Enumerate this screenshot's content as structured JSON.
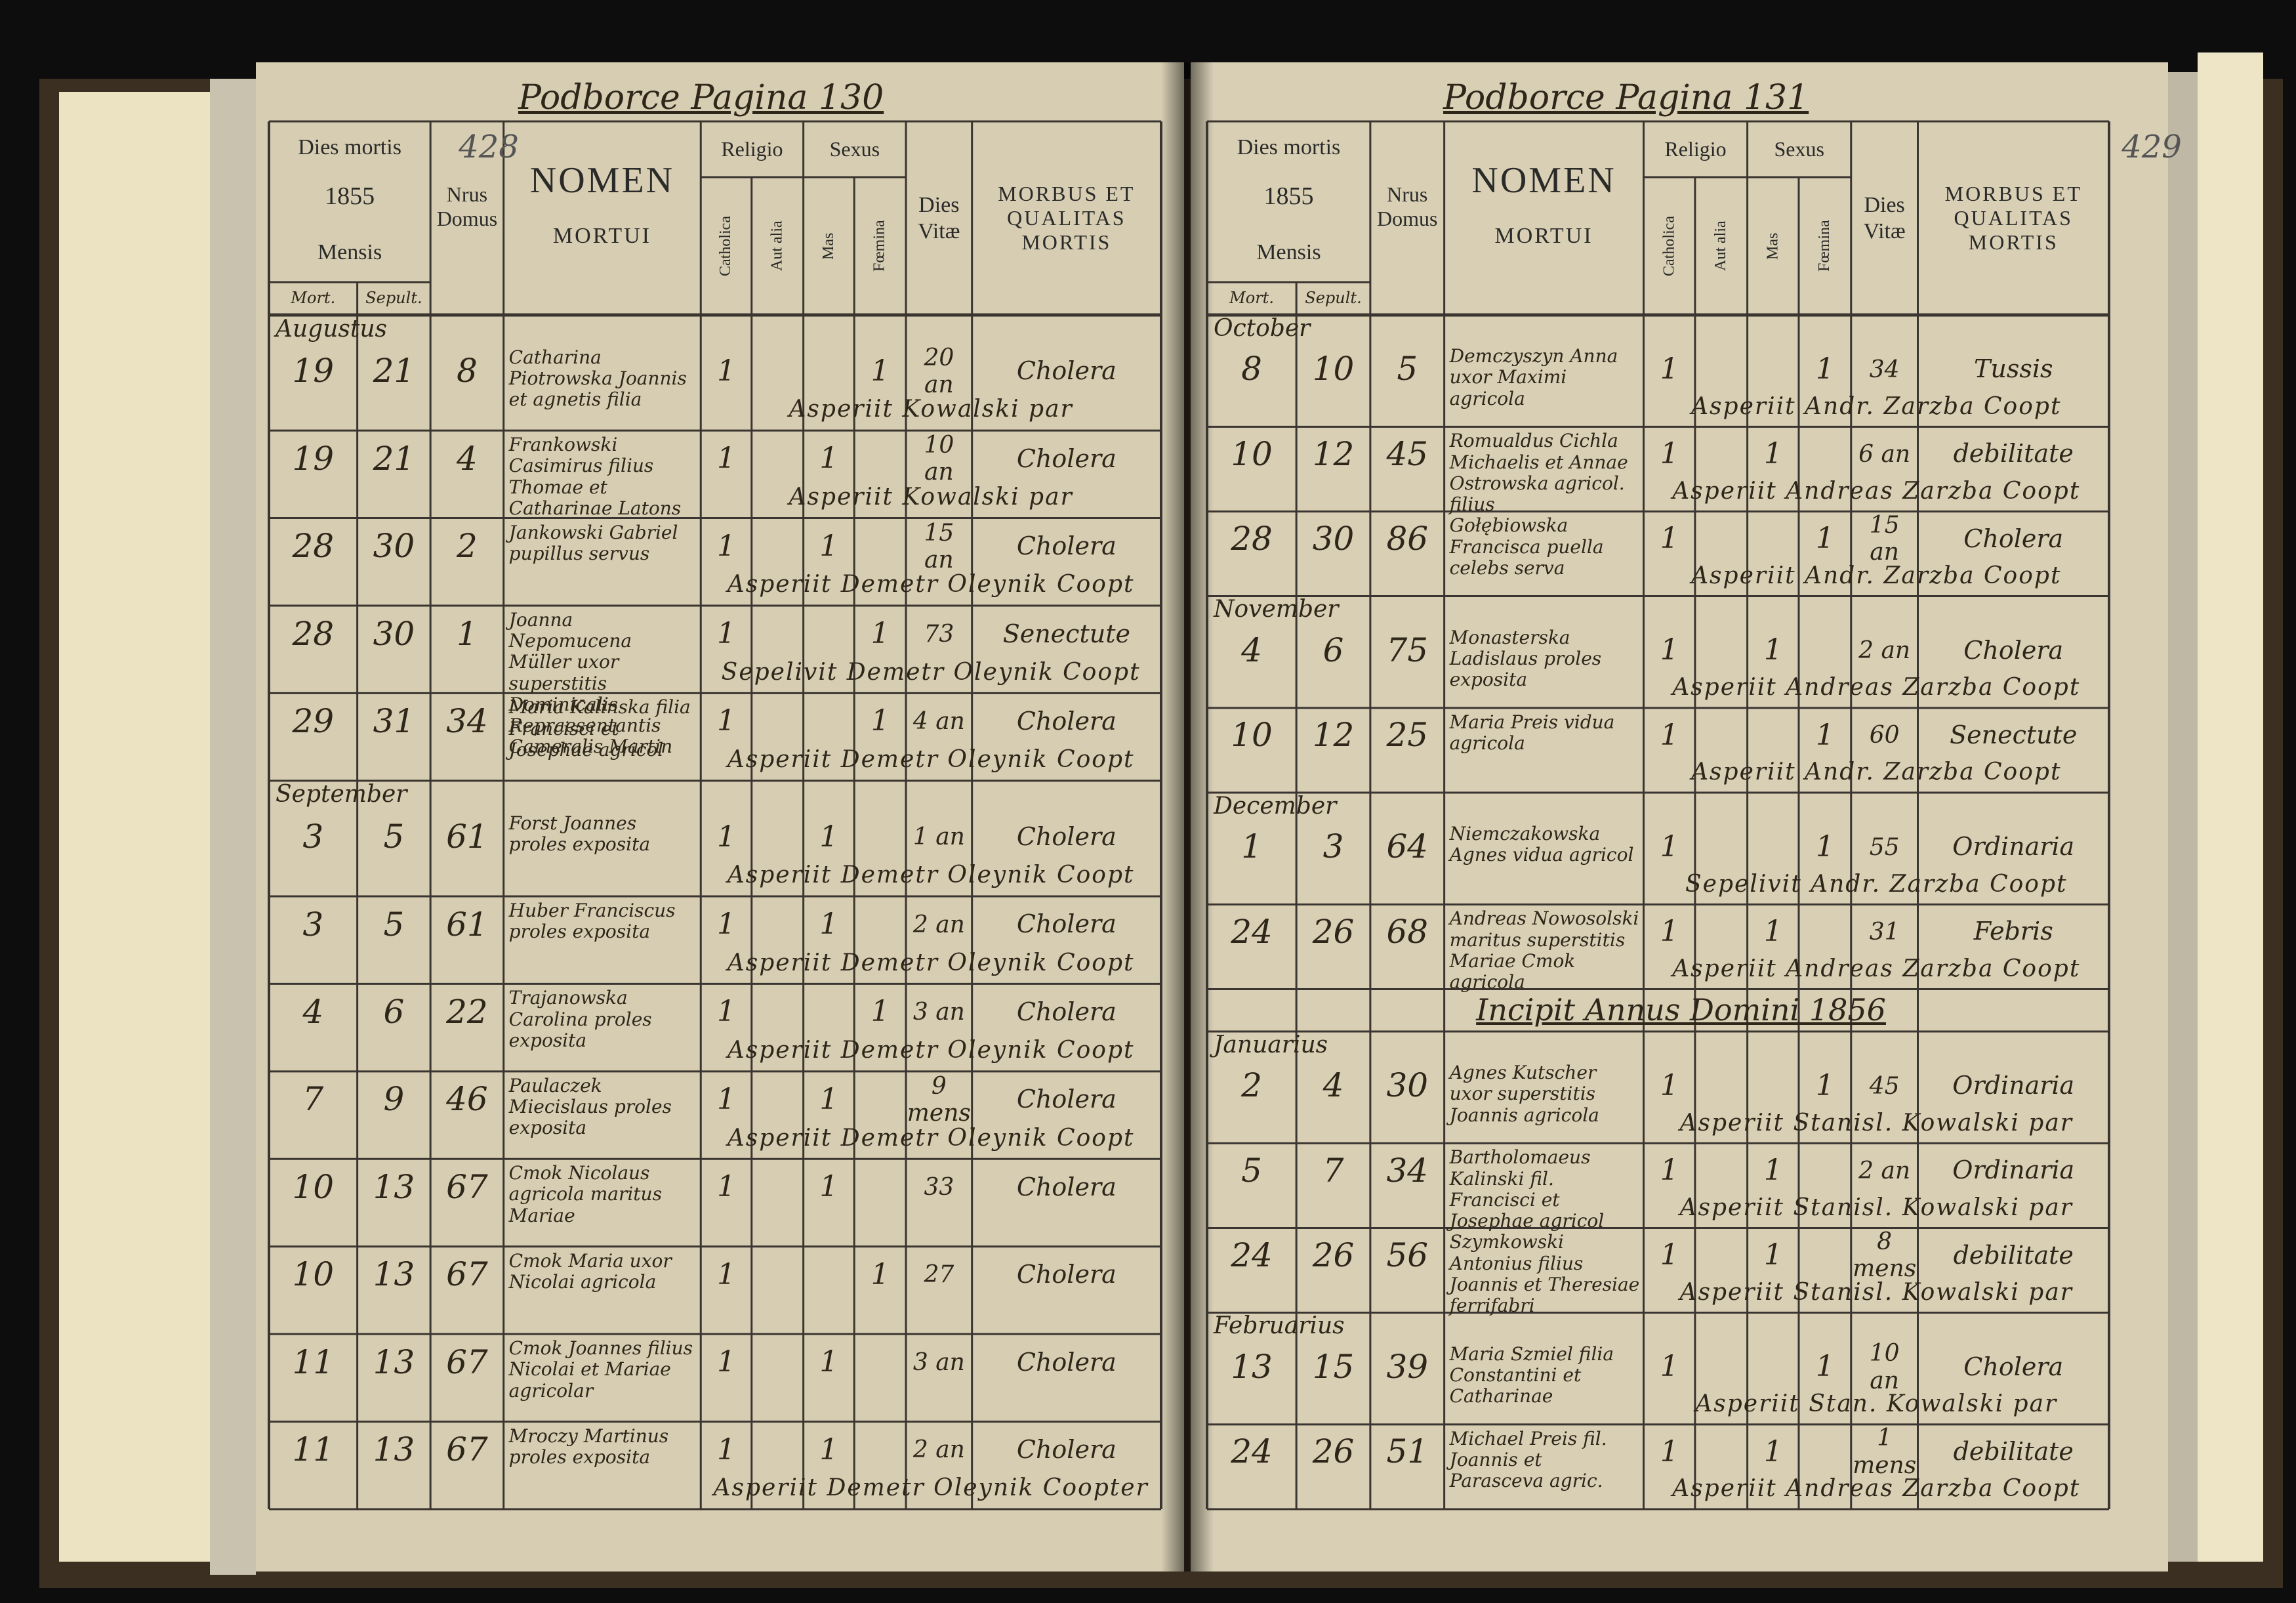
{
  "header": {
    "dies_mortis": "Dies mortis",
    "mensis": "Mensis",
    "mort": "Mort.",
    "sepult": "Sepult.",
    "nrus_domus": "Nrus Domus",
    "nomen": "NOMEN",
    "mortui": "MORTUI",
    "religio": "Religio",
    "catholica": "Catholica",
    "aut_alia": "Aut alia",
    "sexus": "Sexus",
    "mas": "Mas",
    "foemina": "Fœmina",
    "dies_vitae": "Dies Vitæ",
    "morbus": "MORBUS ET QUALITAS MORTIS"
  },
  "left_page": {
    "heading": "Podborce Pagina 130",
    "folio": "428",
    "year": "1855",
    "rows": [
      {
        "month": "Augustus"
      },
      {
        "mort": "19",
        "sepult": "21",
        "domus": "8",
        "nomen": "Catharina Piotrowska Joannis et agnetis filia",
        "cath": "1",
        "fem": "1",
        "vitae": "20 an",
        "morbus": "Cholera",
        "note": "Asperiit Kowalski par"
      },
      {
        "mort": "19",
        "sepult": "21",
        "domus": "4",
        "nomen": "Frankowski Casimirus filius Thomae et Catharinae Latons",
        "cath": "1",
        "mas": "1",
        "vitae": "10 an",
        "morbus": "Cholera",
        "note": "Asperiit Kowalski par"
      },
      {
        "mort": "28",
        "sepult": "30",
        "domus": "2",
        "nomen": "Jankowski Gabriel pupillus servus",
        "cath": "1",
        "mas": "1",
        "vitae": "15 an",
        "morbus": "Cholera",
        "note": "Asperiit Demetr Oleynik Coopt"
      },
      {
        "mort": "28",
        "sepult": "30",
        "domus": "1",
        "nomen": "Joanna Nepomucena Müller uxor superstitis Dominicalis Repraesentantis Cameralis Martin",
        "cath": "1",
        "fem": "1",
        "vitae": "73",
        "morbus": "Senectute",
        "note": "Sepelivit Demetr Oleynik Coopt"
      },
      {
        "mort": "29",
        "sepult": "31",
        "domus": "34",
        "nomen": "Maria Kalinska filia Francisci et Josephae agricol",
        "cath": "1",
        "fem": "1",
        "vitae": "4 an",
        "morbus": "Cholera",
        "note": "Asperiit Demetr Oleynik Coopt"
      },
      {
        "month": "September"
      },
      {
        "mort": "3",
        "sepult": "5",
        "domus": "61",
        "nomen": "Forst Joannes proles exposita",
        "cath": "1",
        "mas": "1",
        "vitae": "1 an",
        "morbus": "Cholera",
        "note": "Asperiit Demetr Oleynik Coopt"
      },
      {
        "mort": "3",
        "sepult": "5",
        "domus": "61",
        "nomen": "Huber Franciscus proles exposita",
        "cath": "1",
        "mas": "1",
        "vitae": "2 an",
        "morbus": "Cholera",
        "note": "Asperiit Demetr Oleynik Coopt"
      },
      {
        "mort": "4",
        "sepult": "6",
        "domus": "22",
        "nomen": "Trajanowska Carolina proles exposita",
        "cath": "1",
        "fem": "1",
        "vitae": "3 an",
        "morbus": "Cholera",
        "note": "Asperiit Demetr Oleynik Coopt"
      },
      {
        "mort": "7",
        "sepult": "9",
        "domus": "46",
        "nomen": "Paulaczek Miecislaus proles exposita",
        "cath": "1",
        "mas": "1",
        "vitae": "9 mens",
        "morbus": "Cholera",
        "note": "Asperiit Demetr Oleynik Coopt"
      },
      {
        "mort": "10",
        "sepult": "13",
        "domus": "67",
        "nomen": "Cmok Nicolaus agricola maritus Mariae",
        "cath": "1",
        "mas": "1",
        "vitae": "33",
        "morbus": "Cholera"
      },
      {
        "mort": "10",
        "sepult": "13",
        "domus": "67",
        "nomen": "Cmok Maria uxor Nicolai agricola",
        "cath": "1",
        "fem": "1",
        "vitae": "27",
        "morbus": "Cholera"
      },
      {
        "mort": "11",
        "sepult": "13",
        "domus": "67",
        "nomen": "Cmok Joannes filius Nicolai et Mariae agricolar",
        "cath": "1",
        "mas": "1",
        "vitae": "3 an",
        "morbus": "Cholera"
      },
      {
        "mort": "11",
        "sepult": "13",
        "domus": "67",
        "nomen": "Mroczy Martinus proles exposita",
        "cath": "1",
        "mas": "1",
        "vitae": "2 an",
        "morbus": "Cholera",
        "note": "Asperiit Demetr Oleynik Coopter"
      }
    ]
  },
  "right_page": {
    "heading": "Podborce Pagina 131",
    "folio": "429",
    "year": "1855",
    "rows": [
      {
        "month": "October"
      },
      {
        "mort": "8",
        "sepult": "10",
        "domus": "5",
        "nomen": "Demczyszyn Anna uxor Maximi agricola",
        "cath": "1",
        "fem": "1",
        "vitae": "34",
        "morbus": "Tussis",
        "note": "Asperiit Andr. Zarzba Coopt"
      },
      {
        "mort": "10",
        "sepult": "12",
        "domus": "45",
        "nomen": "Romualdus Cichla Michaelis et Annae Ostrowska agricol. filius",
        "cath": "1",
        "mas": "1",
        "vitae": "6 an",
        "morbus": "debilitate",
        "note": "Asperiit Andreas Zarzba Coopt"
      },
      {
        "mort": "28",
        "sepult": "30",
        "domus": "86",
        "nomen": "Gołębiowska Francisca puella celebs serva",
        "cath": "1",
        "fem": "1",
        "vitae": "15 an",
        "morbus": "Cholera",
        "note": "Asperiit Andr. Zarzba Coopt"
      },
      {
        "month": "November"
      },
      {
        "mort": "4",
        "sepult": "6",
        "domus": "75",
        "nomen": "Monasterska Ladislaus proles exposita",
        "cath": "1",
        "mas": "1",
        "vitae": "2 an",
        "morbus": "Cholera",
        "note": "Asperiit Andreas Zarzba Coopt"
      },
      {
        "mort": "10",
        "sepult": "12",
        "domus": "25",
        "nomen": "Maria Preis vidua agricola",
        "cath": "1",
        "fem": "1",
        "vitae": "60",
        "morbus": "Senectute",
        "note": "Asperiit Andr. Zarzba Coopt"
      },
      {
        "month": "December"
      },
      {
        "mort": "1",
        "sepult": "3",
        "domus": "64",
        "nomen": "Niemczakowska Agnes vidua agricol",
        "cath": "1",
        "fem": "1",
        "vitae": "55",
        "morbus": "Ordinaria",
        "note": "Sepelivit Andr. Zarzba Coopt"
      },
      {
        "mort": "24",
        "sepult": "26",
        "domus": "68",
        "nomen": "Andreas Nowosolski maritus superstitis Mariae Cmok agricola",
        "cath": "1",
        "mas": "1",
        "vitae": "31",
        "morbus": "Febris",
        "note": "Asperiit Andreas Zarzba Coopt"
      },
      {
        "divider": "Incipit Annus Domini 1856"
      },
      {
        "month": "Januarius"
      },
      {
        "mort": "2",
        "sepult": "4",
        "domus": "30",
        "nomen": "Agnes Kutscher uxor superstitis Joannis agricola",
        "cath": "1",
        "fem": "1",
        "vitae": "45",
        "morbus": "Ordinaria",
        "note": "Asperiit Stanisl. Kowalski par"
      },
      {
        "mort": "5",
        "sepult": "7",
        "domus": "34",
        "nomen": "Bartholomaeus Kalinski fil. Francisci et Josephae agricol",
        "cath": "1",
        "mas": "1",
        "vitae": "2 an",
        "morbus": "Ordinaria",
        "note": "Asperiit Stanisl. Kowalski par"
      },
      {
        "mort": "24",
        "sepult": "26",
        "domus": "56",
        "nomen": "Szymkowski Antonius filius Joannis et Theresiae ferrifabri",
        "cath": "1",
        "mas": "1",
        "vitae": "8 mens",
        "morbus": "debilitate",
        "note": "Asperiit Stanisl. Kowalski par"
      },
      {
        "month": "Februarius"
      },
      {
        "mort": "13",
        "sepult": "15",
        "domus": "39",
        "nomen": "Maria Szmiel filia Constantini et Catharinae",
        "cath": "1",
        "fem": "1",
        "vitae": "10 an",
        "morbus": "Cholera",
        "note": "Asperiit Stan. Kowalski par"
      },
      {
        "mort": "24",
        "sepult": "26",
        "domus": "51",
        "nomen": "Michael Preis fil. Joannis et Parasceva agric.",
        "cath": "1",
        "mas": "1",
        "vitae": "1 mens",
        "morbus": "debilitate",
        "note": "Asperiit Andreas Zarzba Coopt"
      }
    ]
  }
}
